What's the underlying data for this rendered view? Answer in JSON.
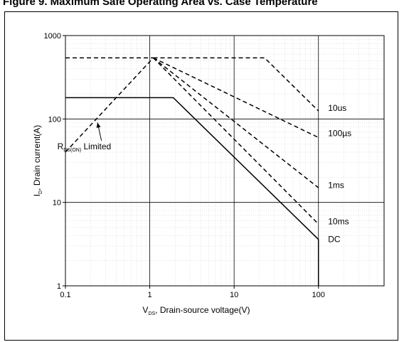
{
  "page_title": "Figure 9. Maximum Safe Operating Area vs. Case Temperature",
  "chart_data": {
    "type": "line",
    "title": "Figure 9. Maximum Safe Operating Area vs. Case Temperature",
    "xlabel_main": "V",
    "xlabel_sub": "DS",
    "xlabel_rest": ", Drain-source voltage(V)",
    "ylabel_main": "I",
    "ylabel_sub": "D",
    "ylabel_rest": ", Drain current(A)",
    "x_scale": "log",
    "y_scale": "log",
    "xlim": [
      0.1,
      600
    ],
    "ylim": [
      1,
      1000
    ],
    "x_ticks": [
      {
        "value": 0.1,
        "label": "0.1"
      },
      {
        "value": 1,
        "label": "1"
      },
      {
        "value": 10,
        "label": "10"
      },
      {
        "value": 100,
        "label": "100"
      }
    ],
    "y_ticks": [
      {
        "value": 1,
        "label": "1"
      },
      {
        "value": 10,
        "label": "10"
      },
      {
        "value": 100,
        "label": "100"
      },
      {
        "value": 1000,
        "label": "1000"
      }
    ],
    "grid": true,
    "series": [
      {
        "name": "10us",
        "style": "dashed",
        "x": [
          1.1,
          23,
          100
        ],
        "y": [
          540,
          540,
          125
        ]
      },
      {
        "name": "100µs",
        "style": "dashed",
        "x": [
          1.1,
          100
        ],
        "y": [
          540,
          60
        ]
      },
      {
        "name": "1ms",
        "style": "dashed",
        "x": [
          1.1,
          100
        ],
        "y": [
          540,
          15
        ]
      },
      {
        "name": "10ms",
        "style": "dashed",
        "x": [
          1.1,
          100
        ],
        "y": [
          540,
          5.5
        ]
      },
      {
        "name": "DC",
        "style": "solid",
        "x": [
          0.1,
          1.9,
          100
        ],
        "y": [
          180,
          180,
          3.6
        ]
      },
      {
        "name": "",
        "style": "solid",
        "x": [
          100,
          100
        ],
        "y": [
          3.6,
          1
        ]
      },
      {
        "name": "",
        "style": "dashed",
        "x": [
          0.1,
          1.1
        ],
        "y": [
          40,
          540
        ]
      },
      {
        "name": "",
        "style": "dashed",
        "x": [
          0.1,
          1.1
        ],
        "y": [
          540,
          540
        ]
      }
    ],
    "annotations": [
      {
        "text": "10us",
        "x": 130,
        "y": 135
      },
      {
        "text": "100µs",
        "x": 130,
        "y": 67
      },
      {
        "text": "1ms",
        "x": 130,
        "y": 16
      },
      {
        "text": "10ms",
        "x": 130,
        "y": 5.9
      },
      {
        "text": "DC",
        "x": 130,
        "y": 3.6
      }
    ],
    "rds_label": {
      "main": "R",
      "sub": "DS(ON)",
      "rest": " Limited",
      "x": 0.22,
      "y": 55,
      "arrow_to_x": 0.24,
      "arrow_to_y": 98
    }
  }
}
